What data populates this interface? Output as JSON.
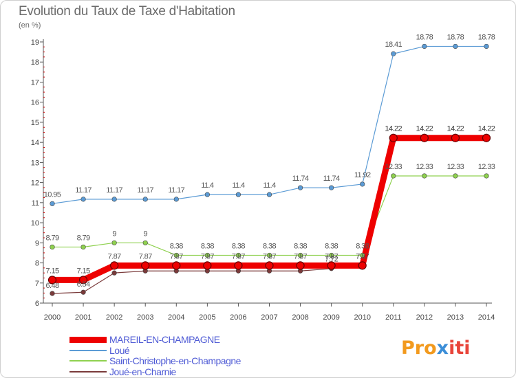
{
  "title": "Evolution du Taux de Taxe d'Habitation",
  "subtitle": "(en %)",
  "logo": {
    "text_parts": [
      "Pro",
      "x",
      "iti"
    ],
    "colors": [
      "#f29a1e",
      "#3b8ed8",
      "#e8443a"
    ]
  },
  "chart_data": {
    "type": "line",
    "categories": [
      "2000",
      "2001",
      "2002",
      "2003",
      "2004",
      "2005",
      "2006",
      "2007",
      "2008",
      "2009",
      "2010",
      "2011",
      "2012",
      "2013",
      "2014"
    ],
    "ylim": [
      6,
      19
    ],
    "yticks": [
      6,
      7,
      8,
      9,
      10,
      11,
      12,
      13,
      14,
      15,
      16,
      17,
      18,
      19
    ],
    "grid": false,
    "legend_position": "bottom",
    "series": [
      {
        "name": "MAREIL-EN-CHAMPAGNE",
        "color": "#ee0000",
        "values": [
          7.15,
          7.15,
          7.87,
          7.87,
          7.87,
          7.87,
          7.87,
          7.87,
          7.87,
          7.87,
          7.87,
          14.22,
          14.22,
          14.22,
          14.22
        ],
        "labels": [
          "7.15",
          "7.15",
          "7.87",
          "7.87",
          "7.87",
          "7.87",
          "7.87",
          "7.87",
          "7.87",
          "7.87",
          "7.87",
          "14.22",
          "14.22",
          "14.22",
          "14.22"
        ]
      },
      {
        "name": "Loué",
        "color": "#5b9bd5",
        "values": [
          10.95,
          11.17,
          11.17,
          11.17,
          11.17,
          11.4,
          11.4,
          11.4,
          11.74,
          11.74,
          11.92,
          18.41,
          18.78,
          18.78,
          18.78
        ],
        "labels": [
          "10.95",
          "11.17",
          "11.17",
          "11.17",
          "11.17",
          "11.4",
          "11.4",
          "11.4",
          "11.74",
          "11.74",
          "11.92",
          "18.41",
          "18.78",
          "18.78",
          "18.78"
        ]
      },
      {
        "name": "Saint-Christophe-en-Champagne",
        "color": "#8fd14f",
        "values": [
          8.79,
          8.79,
          9,
          9,
          8.38,
          8.38,
          8.38,
          8.38,
          8.38,
          8.38,
          8.38,
          12.33,
          12.33,
          12.33,
          12.33
        ],
        "labels": [
          "8.79",
          "8.79",
          "9",
          "9",
          "8.38",
          "8.38",
          "8.38",
          "8.38",
          "8.38",
          "8.38",
          "8.38",
          "12.33",
          "12.33",
          "12.33",
          "12.33"
        ]
      },
      {
        "name": "Joué-en-Charnie",
        "color": "#7a3a3a",
        "values": [
          6.48,
          6.54,
          7.5,
          7.6,
          7.6,
          7.6,
          7.6,
          7.6,
          7.6,
          7.72,
          7.87,
          14.22,
          14.22,
          14.22,
          14.22
        ],
        "labels": [
          "6.48",
          "6.54",
          "",
          "",
          "",
          "",
          "",
          "",
          "",
          "7.72",
          "7.87",
          "14.22",
          "14.22",
          "14.22",
          "14.22"
        ]
      }
    ]
  }
}
